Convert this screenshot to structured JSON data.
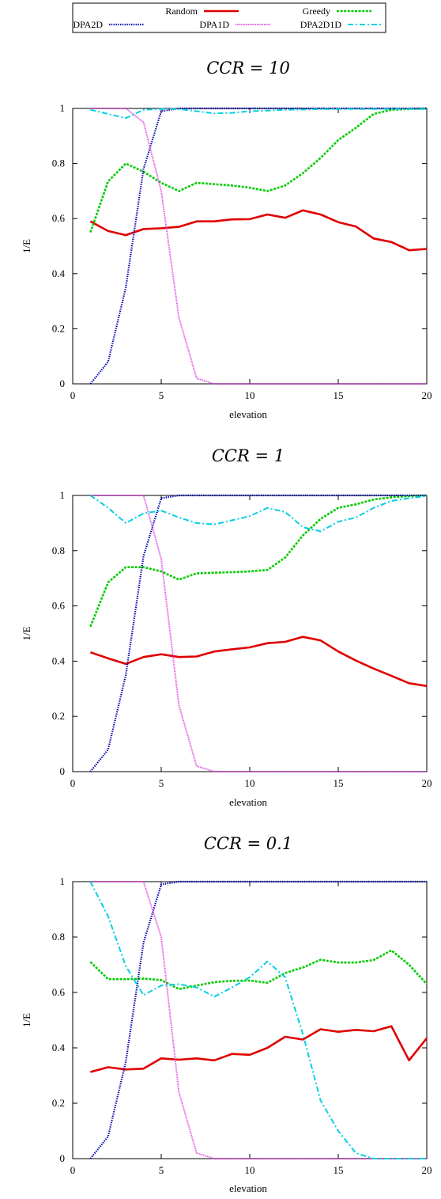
{
  "legend": {
    "entries": [
      {
        "label": "Random",
        "color": "#e00000",
        "dash": "solid"
      },
      {
        "label": "Greedy",
        "color": "#00cc00",
        "dash": "dotted-fine"
      },
      {
        "label": "DPA2D",
        "color": "#0000b0",
        "dash": "dotted"
      },
      {
        "label": "DPA1D",
        "color": "#e040e0",
        "dash": "dotted-dense"
      },
      {
        "label": "DPA2D1D",
        "color": "#00d0e0",
        "dash": "dash-dot"
      }
    ]
  },
  "chart_data": [
    {
      "type": "line",
      "title": "CCR = 10",
      "xlabel": "elevation",
      "ylabel": "1/E",
      "xlim": [
        0,
        20
      ],
      "ylim": [
        0,
        1
      ],
      "xticks": [
        0,
        5,
        10,
        15,
        20
      ],
      "yticks": [
        0,
        0.2,
        0.4,
        0.6,
        0.8,
        1
      ],
      "series": [
        {
          "name": "Random",
          "x": [
            1,
            2,
            3,
            4,
            5,
            6,
            7,
            8,
            9,
            10,
            11,
            12,
            13,
            14,
            15,
            16,
            17,
            18,
            19,
            20
          ],
          "values": [
            0.59,
            0.555,
            0.54,
            0.562,
            0.565,
            0.57,
            0.59,
            0.59,
            0.597,
            0.598,
            0.615,
            0.603,
            0.63,
            0.615,
            0.587,
            0.571,
            0.528,
            0.515,
            0.485,
            0.49
          ]
        },
        {
          "name": "Greedy",
          "x": [
            1,
            2,
            3,
            4,
            5,
            6,
            7,
            8,
            9,
            10,
            11,
            12,
            13,
            14,
            15,
            16,
            17,
            18,
            19,
            20
          ],
          "values": [
            0.55,
            0.735,
            0.8,
            0.77,
            0.73,
            0.7,
            0.73,
            0.725,
            0.72,
            0.712,
            0.7,
            0.72,
            0.765,
            0.82,
            0.885,
            0.93,
            0.98,
            0.995,
            0.998,
            1.0
          ]
        },
        {
          "name": "DPA2D",
          "x": [
            1,
            2,
            3,
            4,
            5,
            6,
            7,
            8,
            9,
            10,
            11,
            12,
            13,
            14,
            15,
            16,
            17,
            18,
            19,
            20
          ],
          "values": [
            0.0,
            0.08,
            0.35,
            0.78,
            0.99,
            1,
            1,
            1,
            1,
            1,
            1,
            1,
            1,
            1,
            1,
            1,
            1,
            1,
            1,
            1
          ]
        },
        {
          "name": "DPA1D",
          "x": [
            1,
            2,
            3,
            4,
            5,
            6,
            7,
            8,
            9,
            10,
            11,
            12,
            13,
            14,
            15,
            16,
            17,
            18,
            19,
            20
          ],
          "values": [
            1,
            1,
            1,
            0.95,
            0.7,
            0.24,
            0.02,
            0,
            0,
            0,
            0,
            0,
            0,
            0,
            0,
            0,
            0,
            0,
            0,
            0
          ]
        },
        {
          "name": "DPA2D1D",
          "x": [
            1,
            2,
            3,
            4,
            5,
            6,
            7,
            8,
            9,
            10,
            11,
            12,
            13,
            14,
            15,
            16,
            17,
            18,
            19,
            20
          ],
          "values": [
            0.995,
            0.98,
            0.965,
            0.995,
            0.998,
            0.998,
            0.99,
            0.982,
            0.984,
            0.99,
            0.992,
            0.995,
            0.996,
            0.997,
            0.998,
            0.998,
            0.998,
            0.998,
            0.998,
            0.998
          ]
        }
      ]
    },
    {
      "type": "line",
      "title": "CCR = 1",
      "xlabel": "elevation",
      "ylabel": "1/E",
      "xlim": [
        0,
        20
      ],
      "ylim": [
        0,
        1
      ],
      "xticks": [
        0,
        5,
        10,
        15,
        20
      ],
      "yticks": [
        0,
        0.2,
        0.4,
        0.6,
        0.8,
        1
      ],
      "series": [
        {
          "name": "Random",
          "x": [
            1,
            2,
            3,
            4,
            5,
            6,
            7,
            8,
            9,
            10,
            11,
            12,
            13,
            14,
            15,
            16,
            17,
            18,
            19,
            20
          ],
          "values": [
            0.432,
            0.41,
            0.39,
            0.415,
            0.425,
            0.415,
            0.417,
            0.435,
            0.443,
            0.45,
            0.465,
            0.47,
            0.488,
            0.475,
            0.435,
            0.402,
            0.373,
            0.347,
            0.32,
            0.31
          ]
        },
        {
          "name": "Greedy",
          "x": [
            1,
            2,
            3,
            4,
            5,
            6,
            7,
            8,
            9,
            10,
            11,
            12,
            13,
            14,
            15,
            16,
            17,
            18,
            19,
            20
          ],
          "values": [
            0.525,
            0.685,
            0.74,
            0.74,
            0.725,
            0.695,
            0.718,
            0.72,
            0.722,
            0.725,
            0.73,
            0.775,
            0.855,
            0.915,
            0.955,
            0.968,
            0.985,
            0.993,
            0.998,
            1.0
          ]
        },
        {
          "name": "DPA2D",
          "x": [
            1,
            2,
            3,
            4,
            5,
            6,
            7,
            8,
            9,
            10,
            11,
            12,
            13,
            14,
            15,
            16,
            17,
            18,
            19,
            20
          ],
          "values": [
            0.0,
            0.08,
            0.35,
            0.78,
            0.99,
            1,
            1,
            1,
            1,
            1,
            1,
            1,
            1,
            1,
            1,
            1,
            1,
            1,
            1,
            1
          ]
        },
        {
          "name": "DPA1D",
          "x": [
            1,
            2,
            3,
            4,
            5,
            6,
            7,
            8,
            9,
            10,
            11,
            12,
            13,
            14,
            15,
            16,
            17,
            18,
            19,
            20
          ],
          "values": [
            1,
            1,
            1,
            1,
            0.77,
            0.24,
            0.02,
            0,
            0,
            0,
            0,
            0,
            0,
            0,
            0,
            0,
            0,
            0,
            0,
            0
          ]
        },
        {
          "name": "DPA2D1D",
          "x": [
            1,
            2,
            3,
            4,
            5,
            6,
            7,
            8,
            9,
            10,
            11,
            12,
            13,
            14,
            15,
            16,
            17,
            18,
            19,
            20
          ],
          "values": [
            1.0,
            0.955,
            0.9,
            0.935,
            0.945,
            0.92,
            0.9,
            0.895,
            0.91,
            0.925,
            0.955,
            0.94,
            0.885,
            0.87,
            0.905,
            0.92,
            0.955,
            0.98,
            0.99,
            0.998
          ]
        }
      ]
    },
    {
      "type": "line",
      "title": "CCR = 0.1",
      "xlabel": "elevation",
      "ylabel": "1/E",
      "xlim": [
        0,
        20
      ],
      "ylim": [
        0,
        1
      ],
      "xticks": [
        0,
        5,
        10,
        15,
        20
      ],
      "yticks": [
        0,
        0.2,
        0.4,
        0.6,
        0.8,
        1
      ],
      "series": [
        {
          "name": "Random",
          "x": [
            1,
            2,
            3,
            4,
            5,
            6,
            7,
            8,
            9,
            10,
            11,
            12,
            13,
            14,
            15,
            16,
            17,
            18,
            19,
            20
          ],
          "values": [
            0.313,
            0.33,
            0.322,
            0.325,
            0.362,
            0.357,
            0.362,
            0.355,
            0.378,
            0.375,
            0.4,
            0.44,
            0.43,
            0.467,
            0.458,
            0.465,
            0.46,
            0.478,
            0.355,
            0.435
          ]
        },
        {
          "name": "Greedy",
          "x": [
            1,
            2,
            3,
            4,
            5,
            6,
            7,
            8,
            9,
            10,
            11,
            12,
            13,
            14,
            15,
            16,
            17,
            18,
            19,
            20
          ],
          "values": [
            0.71,
            0.648,
            0.648,
            0.65,
            0.645,
            0.612,
            0.625,
            0.637,
            0.642,
            0.643,
            0.635,
            0.67,
            0.69,
            0.718,
            0.708,
            0.708,
            0.717,
            0.752,
            0.7,
            0.63
          ]
        },
        {
          "name": "DPA2D",
          "x": [
            1,
            2,
            3,
            4,
            5,
            6,
            7,
            8,
            9,
            10,
            11,
            12,
            13,
            14,
            15,
            16,
            17,
            18,
            19,
            20
          ],
          "values": [
            0.0,
            0.08,
            0.35,
            0.78,
            0.99,
            1,
            1,
            1,
            1,
            1,
            1,
            1,
            1,
            1,
            1,
            1,
            1,
            1,
            1,
            1
          ]
        },
        {
          "name": "DPA1D",
          "x": [
            1,
            2,
            3,
            4,
            5,
            6,
            7,
            8,
            9,
            10,
            11,
            12,
            13,
            14,
            15,
            16,
            17,
            18,
            19,
            20
          ],
          "values": [
            1,
            1,
            1,
            1,
            0.8,
            0.24,
            0.02,
            0,
            0,
            0,
            0,
            0,
            0,
            0,
            0,
            0,
            0,
            0,
            0,
            0
          ]
        },
        {
          "name": "DPA2D1D",
          "x": [
            1,
            2,
            3,
            4,
            5,
            6,
            7,
            8,
            9,
            10,
            11,
            12,
            13,
            14,
            15,
            16,
            17,
            18,
            19,
            20
          ],
          "values": [
            1.0,
            0.875,
            0.695,
            0.59,
            0.625,
            0.63,
            0.618,
            0.585,
            0.618,
            0.655,
            0.712,
            0.655,
            0.45,
            0.21,
            0.1,
            0.02,
            0,
            0,
            0,
            0
          ]
        }
      ]
    }
  ]
}
